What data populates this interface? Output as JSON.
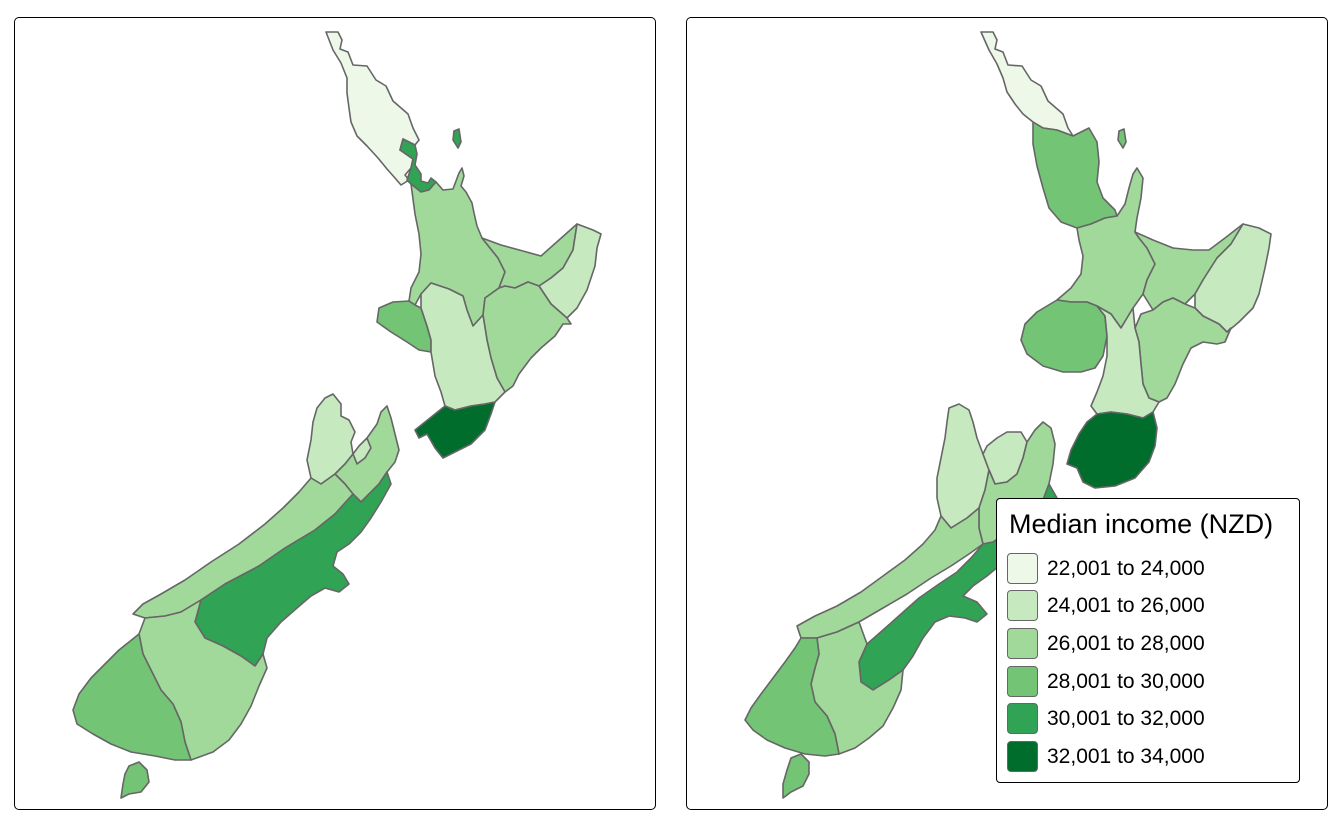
{
  "colors": {
    "c1": "#edf8e9",
    "c2": "#c7e9c0",
    "c3": "#a1d99b",
    "c4": "#74c476",
    "c5": "#31a354",
    "c6": "#006d2c",
    "border": "#666666"
  },
  "maps": [
    {
      "id": "left",
      "regions": [
        {
          "name": "Northland",
          "class": 1
        },
        {
          "name": "Auckland",
          "class": 5
        },
        {
          "name": "Waikato",
          "class": 3
        },
        {
          "name": "Bay of Plenty",
          "class": 3
        },
        {
          "name": "Gisborne",
          "class": 2
        },
        {
          "name": "Hawke's Bay",
          "class": 3
        },
        {
          "name": "Taranaki",
          "class": 4
        },
        {
          "name": "Manawatu-Wanganui",
          "class": 2
        },
        {
          "name": "Wellington",
          "class": 6
        },
        {
          "name": "Tasman",
          "class": 2
        },
        {
          "name": "Nelson",
          "class": 2
        },
        {
          "name": "Marlborough",
          "class": 3
        },
        {
          "name": "West Coast",
          "class": 3
        },
        {
          "name": "Canterbury",
          "class": 5
        },
        {
          "name": "Otago",
          "class": 3
        },
        {
          "name": "Southland",
          "class": 4
        },
        {
          "name": "Stewart Island",
          "class": 4
        }
      ]
    },
    {
      "id": "right",
      "regions": [
        {
          "name": "Northland",
          "class": 1
        },
        {
          "name": "Auckland",
          "class": 4
        },
        {
          "name": "Waikato",
          "class": 3
        },
        {
          "name": "Bay of Plenty",
          "class": 3
        },
        {
          "name": "Gisborne",
          "class": 2
        },
        {
          "name": "Hawke's Bay",
          "class": 3
        },
        {
          "name": "Taranaki",
          "class": 4
        },
        {
          "name": "Manawatu-Wanganui",
          "class": 2
        },
        {
          "name": "Wellington",
          "class": 6
        },
        {
          "name": "Tasman",
          "class": 2
        },
        {
          "name": "Nelson",
          "class": 2
        },
        {
          "name": "Marlborough",
          "class": 3
        },
        {
          "name": "West Coast",
          "class": 3
        },
        {
          "name": "Canterbury",
          "class": 5
        },
        {
          "name": "Otago",
          "class": 3
        },
        {
          "name": "Southland",
          "class": 4
        },
        {
          "name": "Stewart Island",
          "class": 4
        }
      ]
    }
  ],
  "legend": {
    "title": "Median income (NZD)",
    "items": [
      {
        "label": "22,001 to 24,000",
        "color": "#edf8e9"
      },
      {
        "label": "24,001 to 26,000",
        "color": "#c7e9c0"
      },
      {
        "label": "26,001 to 28,000",
        "color": "#a1d99b"
      },
      {
        "label": "28,001 to 30,000",
        "color": "#74c476"
      },
      {
        "label": "30,001 to 32,000",
        "color": "#31a354"
      },
      {
        "label": "32,001 to 34,000",
        "color": "#006d2c"
      }
    ]
  }
}
